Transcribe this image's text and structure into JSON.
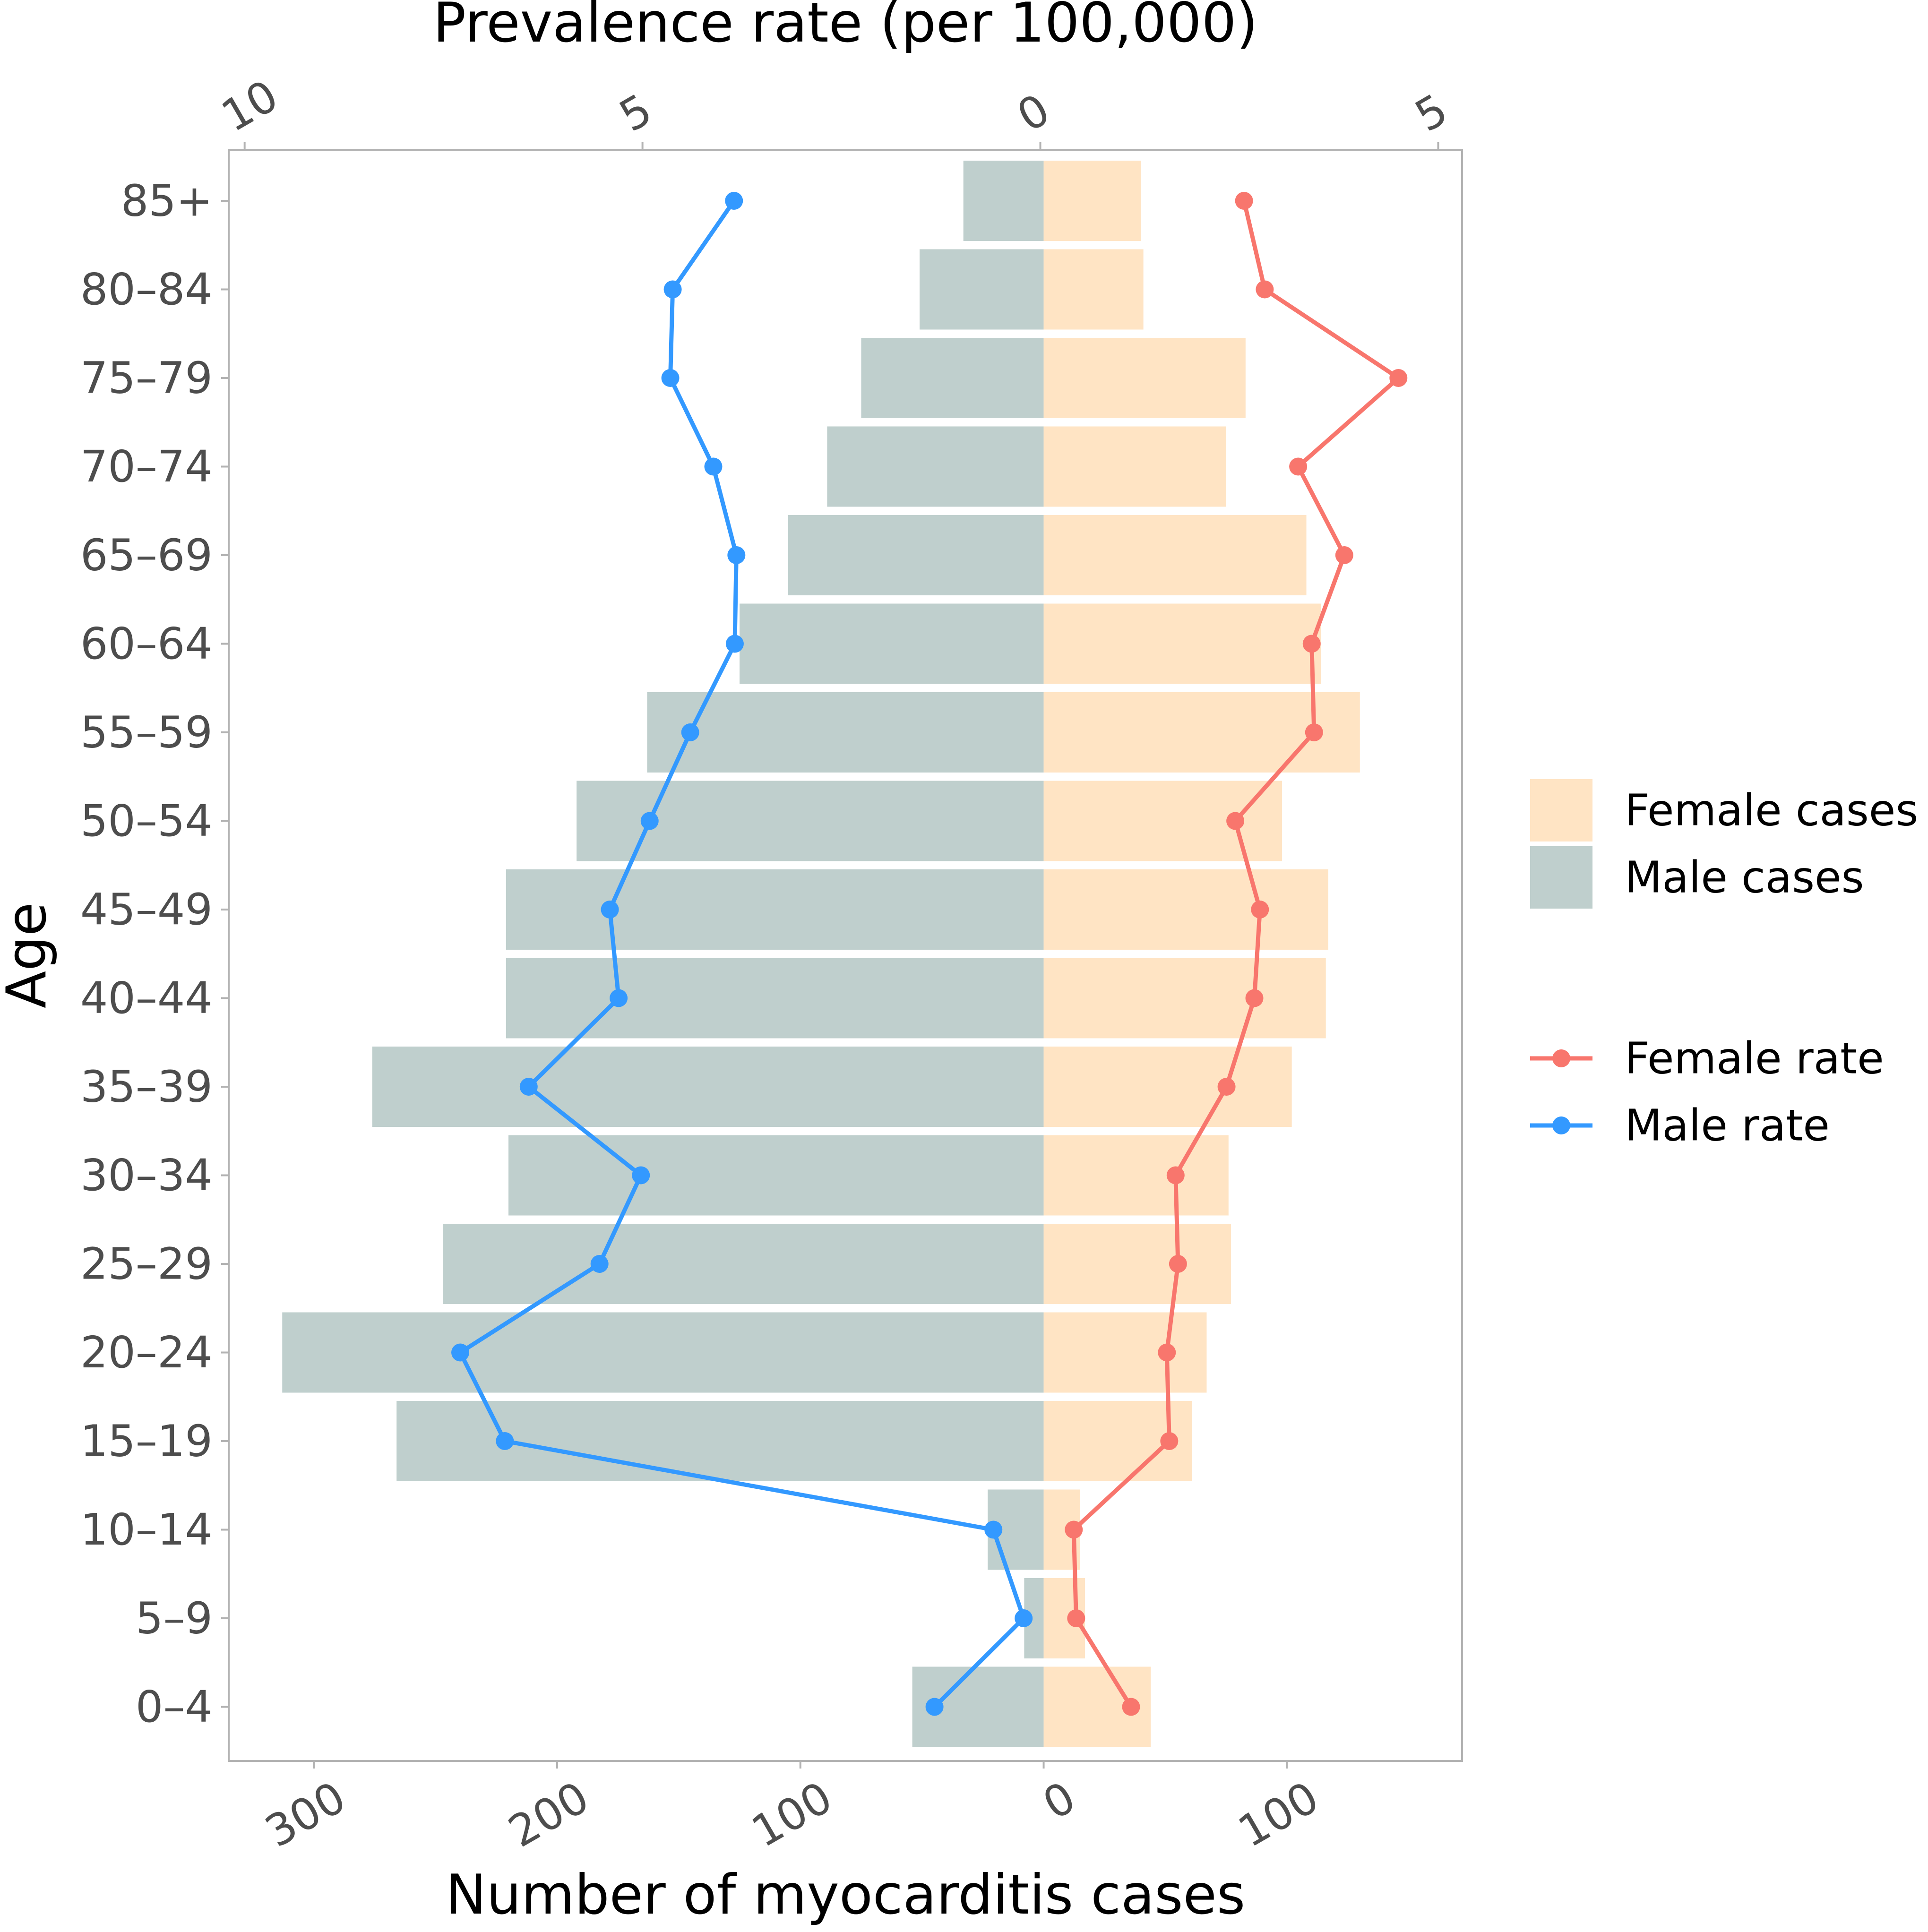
{
  "chart_data": {
    "type": "bar",
    "orientation": "horizontal-population-pyramid",
    "ylabel": "Age",
    "xlabel_bottom": "Number of myocarditis cases",
    "xlabel_top": "Prevalence rate (per 100,000)",
    "categories": [
      "0–4",
      "5–9",
      "10–14",
      "15–19",
      "20–24",
      "25–29",
      "30–34",
      "35–39",
      "40–44",
      "45–49",
      "50–54",
      "55–59",
      "60–64",
      "65–69",
      "70–74",
      "75–79",
      "80–84",
      "85+"
    ],
    "bottom_axis": {
      "range": [
        -335,
        172
      ],
      "ticks": [
        -300,
        -200,
        -100,
        0,
        100
      ],
      "tick_labels": [
        "300",
        "200",
        "100",
        "0",
        "100"
      ]
    },
    "top_axis": {
      "range": [
        -10.2,
        5.3
      ],
      "ticks": [
        -10,
        -5,
        0,
        5
      ],
      "tick_labels": [
        "10",
        "5",
        "0",
        "5"
      ]
    },
    "series": [
      {
        "name": "Female cases",
        "kind": "bar",
        "side": "right",
        "color": "#FFE4C4",
        "values": [
          44,
          17,
          15,
          61,
          67,
          77,
          76,
          102,
          116,
          117,
          98,
          130,
          114,
          108,
          75,
          83,
          41,
          40
        ]
      },
      {
        "name": "Male cases",
        "kind": "bar",
        "side": "left",
        "color": "#BFCFCD",
        "values": [
          54,
          8,
          23,
          266,
          313,
          247,
          220,
          276,
          221,
          221,
          192,
          163,
          125,
          105,
          89,
          75,
          51,
          33
        ]
      },
      {
        "name": "Female rate",
        "kind": "line",
        "side": "right",
        "color": "#F8766D",
        "values": [
          1.14,
          0.45,
          0.42,
          1.62,
          1.59,
          1.73,
          1.7,
          2.34,
          2.69,
          2.76,
          2.45,
          3.44,
          3.41,
          3.82,
          3.24,
          4.5,
          2.82,
          2.56
        ]
      },
      {
        "name": "Male rate",
        "kind": "line",
        "side": "left",
        "color": "#3399FF",
        "values": [
          1.33,
          0.21,
          0.59,
          6.73,
          7.29,
          5.54,
          5.02,
          6.43,
          5.3,
          5.41,
          4.91,
          4.4,
          3.84,
          3.82,
          4.11,
          4.65,
          4.62,
          3.85
        ]
      }
    ],
    "legend": {
      "placement": "right",
      "cases_group": [
        "Female cases",
        "Male cases"
      ],
      "rate_group": [
        "Female rate",
        "Male rate"
      ]
    },
    "grid": false
  }
}
